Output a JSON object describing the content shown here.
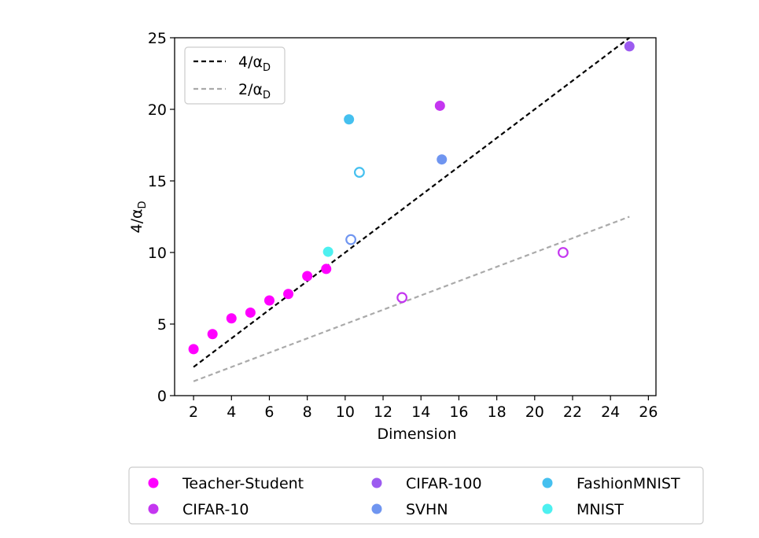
{
  "chart_data": {
    "type": "scatter",
    "title": "",
    "xlabel": "Dimension",
    "ylabel_main": "4/α",
    "ylabel_sub": "D",
    "xlim": [
      1.0,
      26.4
    ],
    "ylim": [
      0,
      25
    ],
    "xticks": [
      2,
      4,
      6,
      8,
      10,
      12,
      14,
      16,
      18,
      20,
      22,
      24,
      26
    ],
    "yticks": [
      0,
      5,
      10,
      15,
      20,
      25
    ],
    "lines": [
      {
        "name": "4/αD",
        "label_main": "4/α",
        "label_sub": "D",
        "color": "#000000",
        "x": [
          2,
          25
        ],
        "y": [
          2,
          25
        ]
      },
      {
        "name": "2/αD",
        "label_main": "2/α",
        "label_sub": "D",
        "color": "#aaaaaa",
        "x": [
          2,
          25
        ],
        "y": [
          1,
          12.5
        ]
      }
    ],
    "series": [
      {
        "name": "Teacher-Student",
        "color": "#ff00ff",
        "points": [
          {
            "x": 2,
            "y": 3.25,
            "filled": true
          },
          {
            "x": 3,
            "y": 4.3,
            "filled": true
          },
          {
            "x": 4,
            "y": 5.4,
            "filled": true
          },
          {
            "x": 5,
            "y": 5.8,
            "filled": true
          },
          {
            "x": 6,
            "y": 6.65,
            "filled": true
          },
          {
            "x": 7,
            "y": 7.1,
            "filled": true
          },
          {
            "x": 8,
            "y": 8.35,
            "filled": true
          },
          {
            "x": 9,
            "y": 8.85,
            "filled": true
          }
        ]
      },
      {
        "name": "CIFAR-10",
        "color": "#c436f0",
        "points": [
          {
            "x": 15,
            "y": 20.25,
            "filled": true
          },
          {
            "x": 13,
            "y": 6.85,
            "filled": false
          },
          {
            "x": 21.5,
            "y": 10.0,
            "filled": false
          }
        ]
      },
      {
        "name": "CIFAR-100",
        "color": "#9c5bf0",
        "points": [
          {
            "x": 25,
            "y": 24.4,
            "filled": true
          }
        ]
      },
      {
        "name": "SVHN",
        "color": "#6f95f0",
        "points": [
          {
            "x": 15.1,
            "y": 16.5,
            "filled": true
          },
          {
            "x": 10.3,
            "y": 10.9,
            "filled": false
          }
        ]
      },
      {
        "name": "FashionMNIST",
        "color": "#45c0ef",
        "points": [
          {
            "x": 10.2,
            "y": 19.3,
            "filled": true
          },
          {
            "x": 10.75,
            "y": 15.6,
            "filled": false
          }
        ]
      },
      {
        "name": "MNIST",
        "color": "#4df0f0",
        "points": [
          {
            "x": 9.1,
            "y": 10.05,
            "filled": true
          }
        ]
      }
    ],
    "legend_lines_position": "top-left",
    "legend_series_position": "below"
  }
}
